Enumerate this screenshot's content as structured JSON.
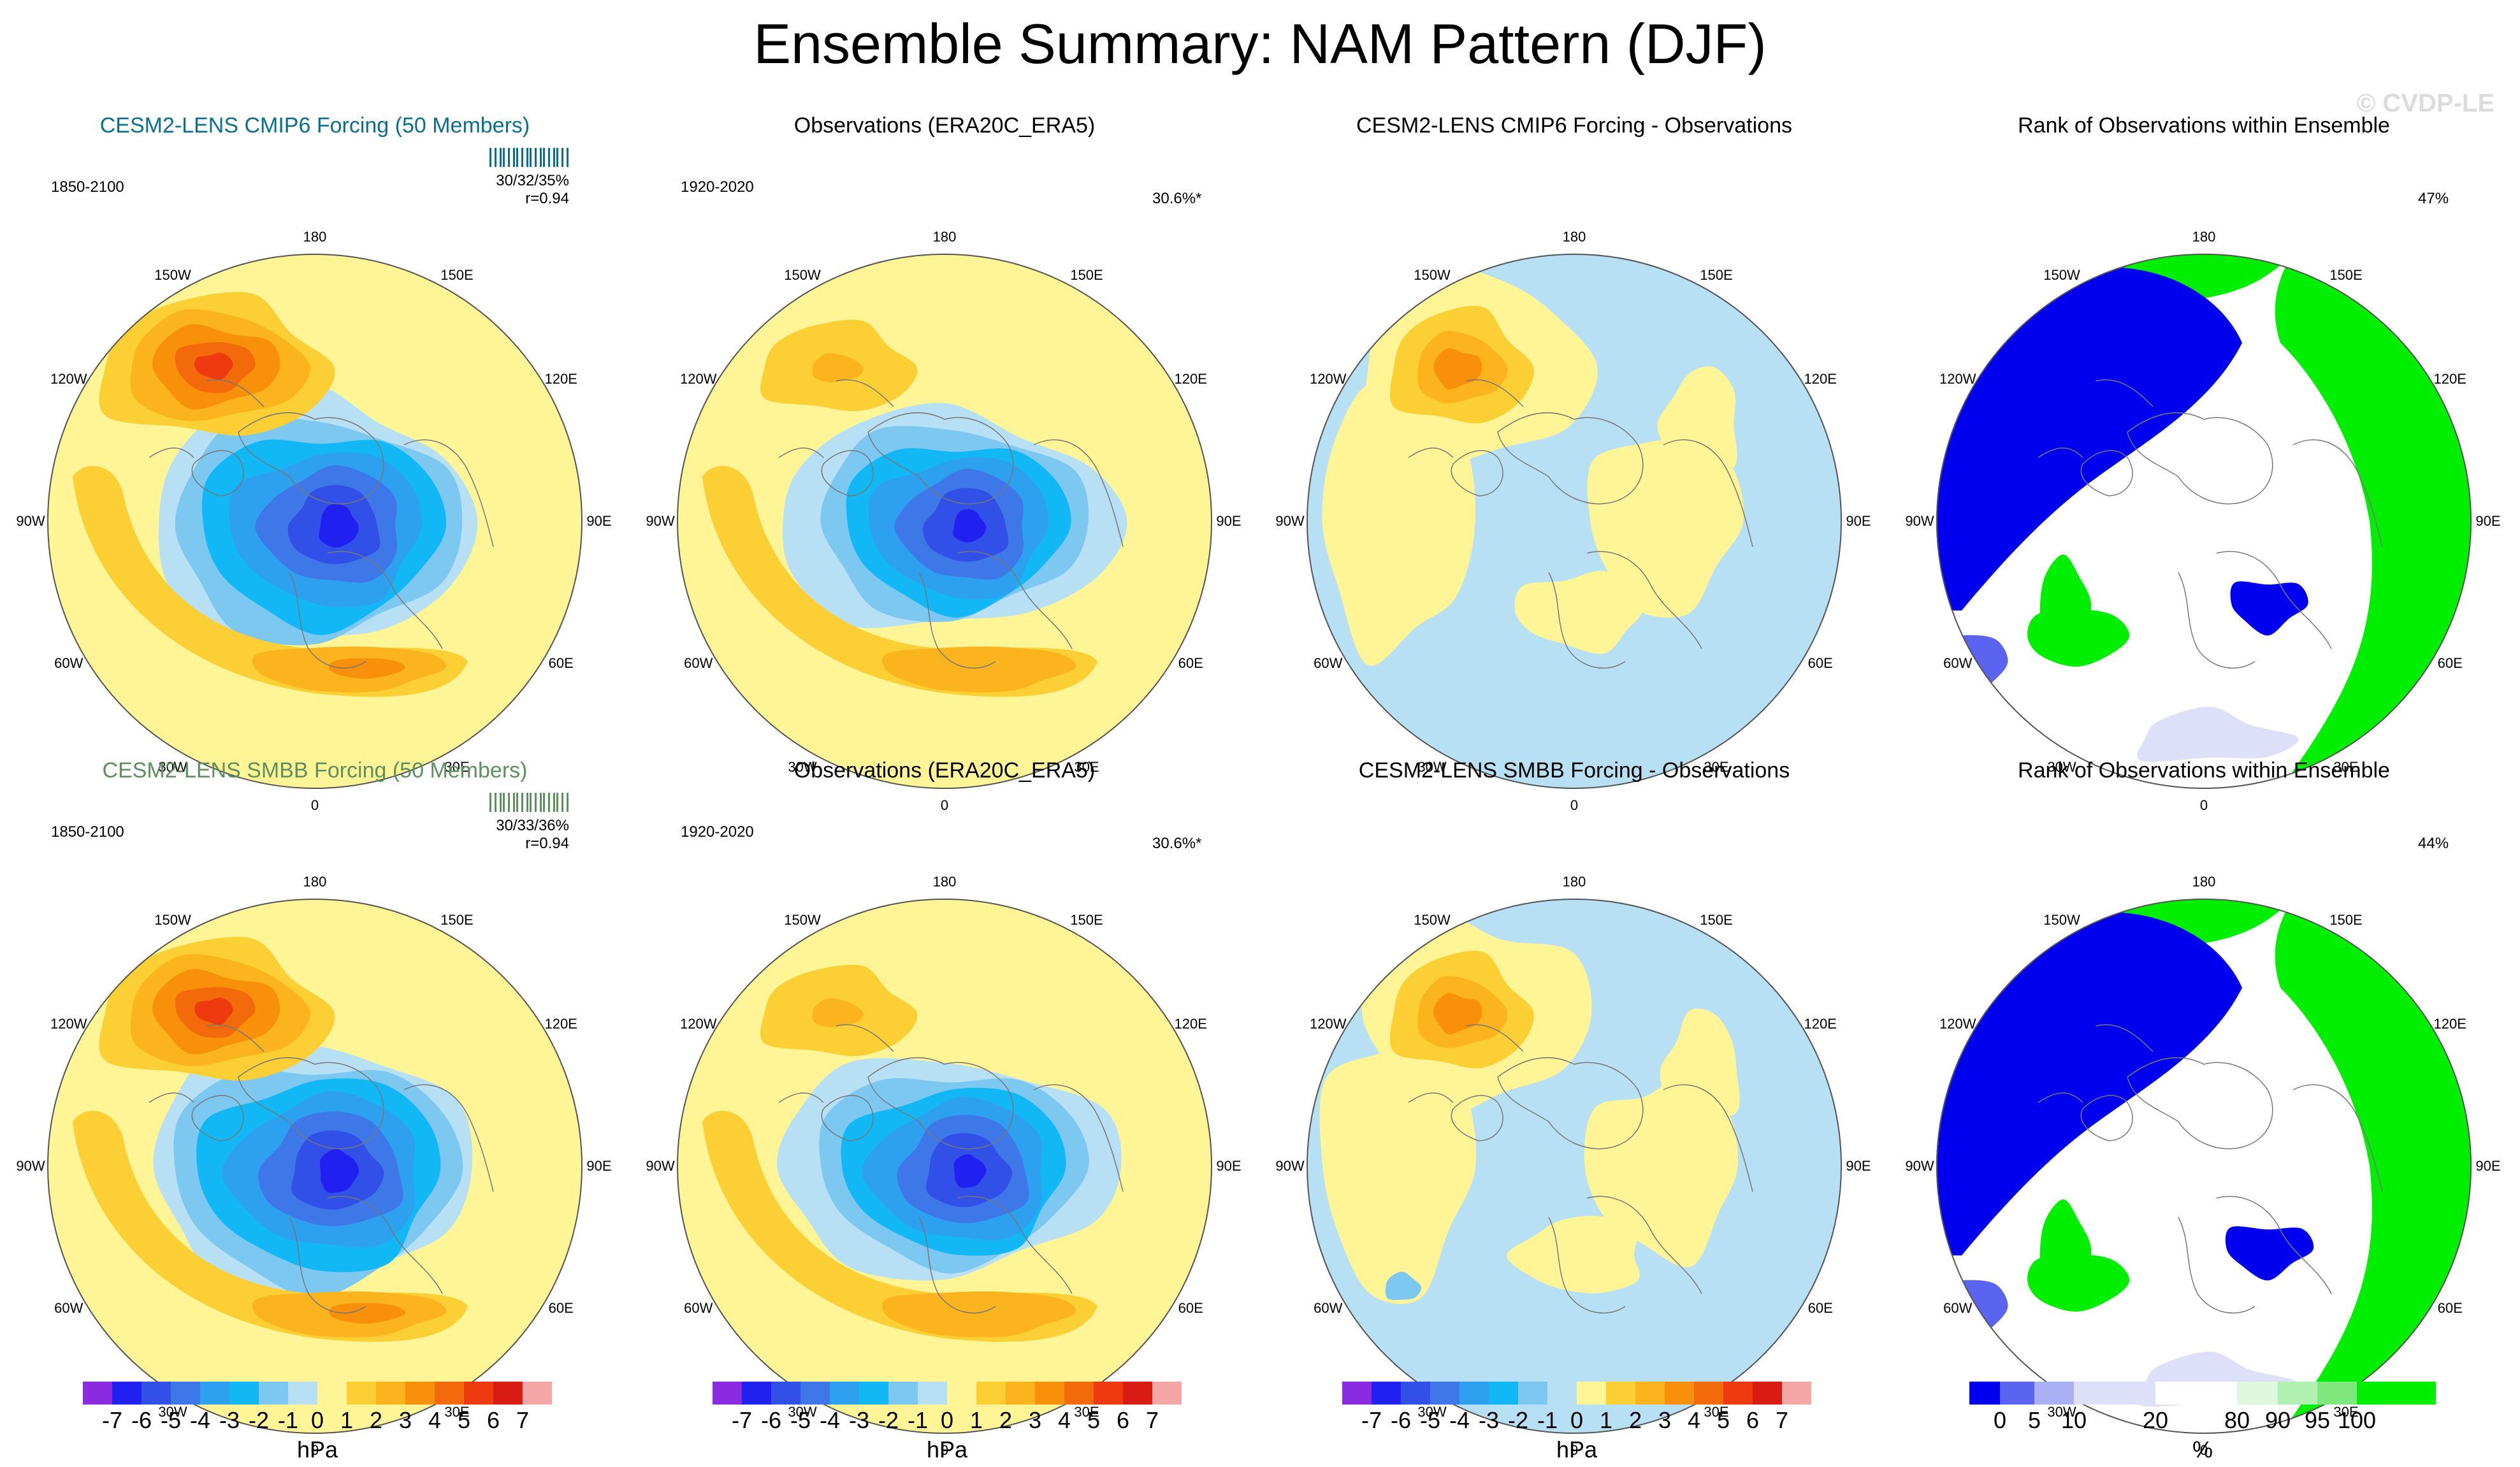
{
  "title": "Ensemble Summary: NAM Pattern (DJF)",
  "watermark": "© CVDP-LE",
  "longitude_labels": [
    "180",
    "150E",
    "120E",
    "90E",
    "60E",
    "30E",
    "0",
    "30W",
    "60W",
    "90W",
    "120W",
    "150W"
  ],
  "colors": {
    "model_title_top": "#0a6f8f",
    "model_title_bottom": "#5e8f5e"
  },
  "rows": [
    {
      "panels": [
        {
          "kind": "model",
          "title": "CESM2-LENS CMIP6 Forcing (50 Members)",
          "years": "1850-2100",
          "stats": "30/32/35%",
          "corr": "r=0.94"
        },
        {
          "kind": "obs",
          "title": "Observations (ERA20C_ERA5)",
          "years": "1920-2020",
          "pct": "30.6%*"
        },
        {
          "kind": "diff",
          "title": "CESM2-LENS CMIP6 Forcing - Observations"
        },
        {
          "kind": "rank",
          "title": "Rank of Observations within Ensemble",
          "pct": "47%"
        }
      ]
    },
    {
      "panels": [
        {
          "kind": "model",
          "title": "CESM2-LENS SMBB Forcing (50 Members)",
          "years": "1850-2100",
          "stats": "30/33/36%",
          "corr": "r=0.94"
        },
        {
          "kind": "obs",
          "title": "Observations (ERA20C_ERA5)",
          "years": "1920-2020",
          "pct": "30.6%*"
        },
        {
          "kind": "diff",
          "title": "CESM2-LENS SMBB Forcing - Observations"
        },
        {
          "kind": "rank",
          "title": "Rank of Observations within Ensemble",
          "pct": "44%"
        }
      ]
    }
  ],
  "colorbars": {
    "hpa": {
      "unit": "hPa",
      "tick_labels": [
        "-7",
        "-6",
        "-5",
        "-4",
        "-3",
        "-2",
        "-1",
        "0",
        "1",
        "2",
        "3",
        "4",
        "5",
        "6",
        "7"
      ],
      "colors": [
        "#8a2be2",
        "#2020f0",
        "#3050e8",
        "#3e78e8",
        "#2ea0f0",
        "#12b8f5",
        "#7cc8f0",
        "#b8e0f4",
        "#fff596",
        "#fcd034",
        "#fbb41e",
        "#f8900a",
        "#f26a0a",
        "#ee3a0e",
        "#d81c14",
        "#f5a6a6"
      ]
    },
    "rank": {
      "unit": "%",
      "tick_labels": [
        "0",
        "5",
        "10",
        "20",
        "80",
        "90",
        "95",
        "100"
      ],
      "tick_values": [
        0,
        5,
        10,
        20,
        80,
        90,
        95,
        100
      ],
      "colors": [
        "#0000ee",
        "#5a64f0",
        "#a9b0f3",
        "#dde0f8",
        "#ffffff",
        "#ddf8dd",
        "#b0f0b0",
        "#7ee87e",
        "#00ee00"
      ]
    }
  }
}
